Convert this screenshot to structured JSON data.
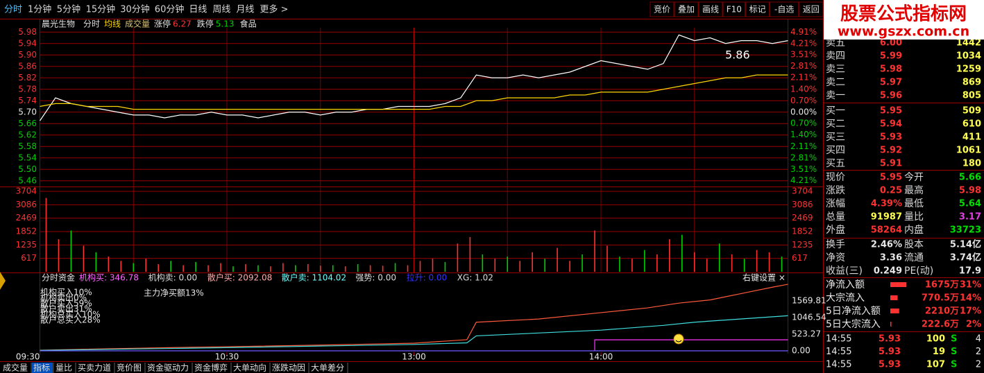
{
  "toolbar": {
    "tabs": [
      "分时",
      "1分钟",
      "5分钟",
      "15分钟",
      "30分钟",
      "60分钟",
      "日线",
      "周线",
      "月线",
      "更多 >"
    ],
    "buttons": [
      "竞价",
      "叠加",
      "画线",
      "F10",
      "标记",
      "-自选",
      "返回"
    ]
  },
  "logo": {
    "title": "股票公式指标网",
    "url": "www.gszx.com.cn"
  },
  "header": {
    "name": "晨光生物",
    "items": [
      "分时",
      "均线",
      "成交量"
    ],
    "limit_up_label": "涨停",
    "limit_up": "6.27",
    "limit_down_label": "跌停",
    "limit_down": "5.13",
    "sector": "食品"
  },
  "chart_data": [
    {
      "type": "line",
      "annotation": "5.86",
      "x": [
        0,
        5,
        10,
        15,
        20,
        25,
        30,
        35,
        40,
        45,
        50,
        55,
        60,
        65,
        70,
        75,
        80,
        85,
        90,
        95,
        100,
        105,
        110,
        115,
        120,
        125,
        130,
        135,
        140,
        145,
        150,
        155,
        160,
        165,
        170,
        175,
        180,
        185,
        190,
        195,
        200,
        205,
        210,
        215,
        220,
        225,
        230,
        235,
        240
      ],
      "xlim": [
        0,
        240
      ],
      "series": [
        {
          "color": "#ffffff",
          "values": [
            5.67,
            5.75,
            5.73,
            5.72,
            5.71,
            5.7,
            5.69,
            5.69,
            5.68,
            5.69,
            5.69,
            5.7,
            5.69,
            5.69,
            5.68,
            5.69,
            5.7,
            5.7,
            5.69,
            5.7,
            5.7,
            5.71,
            5.71,
            5.72,
            5.72,
            5.72,
            5.73,
            5.75,
            5.83,
            5.82,
            5.82,
            5.83,
            5.82,
            5.83,
            5.84,
            5.86,
            5.88,
            5.87,
            5.86,
            5.85,
            5.87,
            5.97,
            5.95,
            5.96,
            5.94,
            5.95,
            5.95,
            5.94,
            5.95
          ]
        },
        {
          "color": "#ffd700",
          "values": [
            5.72,
            5.73,
            5.73,
            5.72,
            5.72,
            5.72,
            5.71,
            5.71,
            5.71,
            5.71,
            5.71,
            5.71,
            5.71,
            5.71,
            5.71,
            5.71,
            5.71,
            5.71,
            5.71,
            5.71,
            5.71,
            5.71,
            5.71,
            5.71,
            5.71,
            5.71,
            5.72,
            5.72,
            5.74,
            5.74,
            5.75,
            5.75,
            5.75,
            5.75,
            5.76,
            5.76,
            5.77,
            5.77,
            5.77,
            5.77,
            5.78,
            5.79,
            5.8,
            5.81,
            5.82,
            5.82,
            5.83,
            5.83,
            5.83
          ]
        }
      ],
      "ylim": [
        5.44,
        6.0
      ],
      "yticks": [
        {
          "value": 5.98,
          "label": "5.98"
        },
        {
          "value": 5.94,
          "label": "5.94"
        },
        {
          "value": 5.9,
          "label": "5.90"
        },
        {
          "value": 5.86,
          "label": "5.86"
        },
        {
          "value": 5.82,
          "label": "5.82"
        },
        {
          "value": 5.78,
          "label": "5.78"
        },
        {
          "value": 5.74,
          "label": "5.74"
        },
        {
          "value": 5.7,
          "label": "5.70"
        },
        {
          "value": 5.66,
          "label": "5.66"
        },
        {
          "value": 5.62,
          "label": "5.62"
        },
        {
          "value": 5.58,
          "label": "5.58"
        },
        {
          "value": 5.54,
          "label": "5.54"
        },
        {
          "value": 5.5,
          "label": "5.50"
        },
        {
          "value": 5.46,
          "label": "5.46"
        }
      ],
      "y2lim": [
        -4.561,
        5.263
      ],
      "y2ticks": [
        {
          "value": 4.91,
          "label": "4.91%"
        },
        {
          "value": 4.21,
          "label": "4.21%"
        },
        {
          "value": 3.51,
          "label": "3.51%"
        },
        {
          "value": 2.81,
          "label": "2.81%"
        },
        {
          "value": 2.11,
          "label": "2.11%"
        },
        {
          "value": 1.4,
          "label": "1.40%"
        },
        {
          "value": 0.7,
          "label": "0.70%"
        },
        {
          "value": 0,
          "label": "0.00%"
        },
        {
          "value": -0.7,
          "label": "0.70%"
        },
        {
          "value": -1.4,
          "label": "1.40%"
        },
        {
          "value": -2.11,
          "label": "2.11%"
        },
        {
          "value": -2.81,
          "label": "2.81%"
        },
        {
          "value": -3.51,
          "label": "3.51%"
        },
        {
          "value": -4.21,
          "label": "4.21%"
        }
      ],
      "grid": true,
      "grid_color": "#9a0000"
    },
    {
      "type": "bar",
      "x": [
        2,
        6,
        10,
        14,
        18,
        22,
        26,
        30,
        34,
        38,
        42,
        46,
        50,
        54,
        58,
        62,
        66,
        70,
        74,
        78,
        82,
        86,
        90,
        94,
        98,
        102,
        106,
        110,
        114,
        118,
        122,
        126,
        130,
        134,
        138,
        142,
        146,
        150,
        154,
        158,
        162,
        166,
        170,
        174,
        178,
        182,
        186,
        190,
        194,
        198,
        202,
        206,
        210,
        214,
        218,
        222,
        226,
        230,
        234,
        238
      ],
      "xlim": [
        0,
        240
      ],
      "values": [
        3400,
        1500,
        1900,
        1200,
        900,
        700,
        500,
        400,
        600,
        350,
        500,
        300,
        450,
        300,
        400,
        250,
        350,
        300,
        250,
        400,
        300,
        350,
        280,
        300,
        250,
        350,
        300,
        280,
        400,
        300,
        500,
        600,
        450,
        1300,
        1600,
        800,
        600,
        700,
        500,
        900,
        600,
        1100,
        500,
        800,
        1900,
        1200,
        700,
        600,
        1000,
        800,
        1500,
        1700,
        900,
        600,
        1300,
        800,
        600,
        1000,
        900,
        700
      ],
      "bar_colors": [
        "#ff3232",
        "#ff3232",
        "#00d000",
        "#ff3232",
        "#00d000",
        "#ff3232",
        "#ff3232",
        "#00d000",
        "#ff3232",
        "#ff3232",
        "#00d000",
        "#ff3232",
        "#00d000",
        "#ff3232",
        "#ff3232",
        "#00d000",
        "#ff3232",
        "#00d000",
        "#ff3232",
        "#ff3232",
        "#00d000",
        "#ff3232",
        "#ff3232",
        "#00d000",
        "#ff3232",
        "#00d000",
        "#ff3232",
        "#ff3232",
        "#00d000",
        "#ff3232",
        "#ff3232",
        "#ff3232",
        "#00d000",
        "#ff3232",
        "#ff3232",
        "#00d000",
        "#ff3232",
        "#00d000",
        "#ff3232",
        "#ff3232",
        "#00d000",
        "#ff3232",
        "#ff3232",
        "#00d000",
        "#ff3232",
        "#ff3232",
        "#00d000",
        "#ff3232",
        "#00d000",
        "#ff3232",
        "#ff3232",
        "#00d000",
        "#ff3232",
        "#ff3232",
        "#00d000",
        "#ff3232",
        "#00d000",
        "#ff3232",
        "#ff3232",
        "#00d000"
      ],
      "ylim": [
        0,
        3704
      ],
      "yticks": [
        617,
        1235,
        1852,
        2469,
        3086,
        3704
      ],
      "grid": true,
      "grid_color": "#9a0000"
    },
    {
      "type": "line",
      "title": "分时资金",
      "stats": [
        {
          "text": "机构买: 346.78",
          "color": "#ff66ff"
        },
        {
          "text": "机构卖: 0.00",
          "color": "#dddddd"
        },
        {
          "text": "散户买: 2092.08",
          "color": "#ffaaaa"
        },
        {
          "text": "散户卖: 1104.02",
          "color": "#66ffff"
        },
        {
          "text": "强势: 0.00",
          "color": "#dddddd"
        },
        {
          "text": "拉升: 0.00",
          "color": "#3333ff"
        },
        {
          "text": "XG: 1.02",
          "color": "#dddddd"
        }
      ],
      "settings_label": "右键设置 ×",
      "overlay": [
        "机构买入10%",
        "机构卖出0%",
        "散户买入59%",
        "散户卖出31%",
        "机构总买入10%",
        "散户总买入28%"
      ],
      "net_label": "主力净买额13%",
      "xlim": [
        0,
        240
      ],
      "xticks": [
        {
          "value": 0,
          "label": "09:30"
        },
        {
          "value": 60,
          "label": "10:30"
        },
        {
          "value": 120,
          "label": "13:00"
        },
        {
          "value": 180,
          "label": "14:00"
        }
      ],
      "series": [
        {
          "color": "#ff5a3c",
          "x": [
            0,
            30,
            60,
            90,
            120,
            137,
            140,
            160,
            180,
            195,
            205,
            215,
            220,
            225,
            235,
            240
          ],
          "values": [
            20,
            80,
            130,
            180,
            240,
            350,
            900,
            1000,
            1200,
            1350,
            1500,
            1600,
            1700,
            1800,
            2000,
            2092.08
          ]
        },
        {
          "color": "#40e0e0",
          "x": [
            0,
            60,
            120,
            137,
            140,
            180,
            200,
            210,
            240
          ],
          "values": [
            15,
            100,
            200,
            250,
            470,
            650,
            800,
            900,
            1104.02
          ]
        },
        {
          "color": "#ff33ff",
          "x": [
            178,
            178,
            240
          ],
          "values": [
            0,
            346.78,
            346.78
          ]
        },
        {
          "color": "#6a5cff",
          "x": [
            0,
            240
          ],
          "values": [
            0,
            0
          ]
        }
      ],
      "ylim": [
        0,
        2180
      ],
      "yticks": [
        {
          "value": 0,
          "label": "0.00"
        },
        523.27,
        1046.54,
        1569.81
      ]
    }
  ],
  "quote": {
    "asks": [
      {
        "label": "卖五",
        "price": "6.00",
        "volume": "1442",
        "color": "#ff3232"
      },
      {
        "label": "卖四",
        "price": "5.99",
        "volume": "1034",
        "color": "#ff3232"
      },
      {
        "label": "卖三",
        "price": "5.98",
        "volume": "1259",
        "color": "#ff3232"
      },
      {
        "label": "卖二",
        "price": "5.97",
        "volume": "869",
        "color": "#ff3232"
      },
      {
        "label": "卖一",
        "price": "5.96",
        "volume": "805",
        "color": "#ff3232"
      }
    ],
    "bids": [
      {
        "label": "买一",
        "price": "5.95",
        "volume": "509",
        "color": "#ff3232"
      },
      {
        "label": "买二",
        "price": "5.94",
        "volume": "610",
        "color": "#ff3232"
      },
      {
        "label": "买三",
        "price": "5.93",
        "volume": "411",
        "color": "#ff3232"
      },
      {
        "label": "买四",
        "price": "5.92",
        "volume": "1061",
        "color": "#ff3232"
      },
      {
        "label": "买五",
        "price": "5.91",
        "volume": "180",
        "color": "#ff3232"
      }
    ],
    "stats": [
      {
        "l1": "现价",
        "v1": "5.95",
        "c1": "#ff3232",
        "l2": "今开",
        "v2": "5.66",
        "c2": "#00e000"
      },
      {
        "l1": "涨跌",
        "v1": "0.25",
        "c1": "#ff3232",
        "l2": "最高",
        "v2": "5.98",
        "c2": "#ff3232"
      },
      {
        "l1": "涨幅",
        "v1": "4.39%",
        "c1": "#ff3232",
        "l2": "最低",
        "v2": "5.64",
        "c2": "#00e000"
      },
      {
        "l1": "总量",
        "v1": "91987",
        "c1": "#ffff50",
        "l2": "量比",
        "v2": "3.17",
        "c2": "#e040e0"
      },
      {
        "l1": "外盘",
        "v1": "58264",
        "c1": "#ff3232",
        "l2": "内盘",
        "v2": "33723",
        "c2": "#00e000"
      }
    ],
    "info": [
      {
        "l1": "换手",
        "v1": "2.46%",
        "c1": "#e8e8e8",
        "l2": "股本",
        "v2": "5.14亿",
        "c2": "#e8e8e8"
      },
      {
        "l1": "净资",
        "v1": "3.36",
        "c1": "#e8e8e8",
        "l2": "流通",
        "v2": "3.74亿",
        "c2": "#e8e8e8"
      },
      {
        "l1": "收益(三)",
        "v1": "0.249",
        "c1": "#e8e8e8",
        "l2": "PE(动)",
        "v2": "17.9",
        "c2": "#e8e8e8"
      }
    ],
    "flows": [
      {
        "label": "净流入额",
        "value": "1675万",
        "pct": "31%"
      },
      {
        "label": "大宗流入",
        "value": "770.5万",
        "pct": "14%"
      },
      {
        "label": "5日净流入额",
        "value": "2210万",
        "pct": "17%"
      },
      {
        "label": "5日大宗流入",
        "value": "222.6万",
        "pct": "2%"
      }
    ],
    "trades": [
      {
        "time": "14:55",
        "price": "5.93",
        "volume": "100",
        "side": "S",
        "count": "4"
      },
      {
        "time": "14:55",
        "price": "5.93",
        "volume": "19",
        "side": "S",
        "count": "2"
      },
      {
        "time": "14:55",
        "price": "5.93",
        "volume": "107",
        "side": "S",
        "count": "2"
      }
    ]
  },
  "tabs": [
    "成交量",
    "指标",
    "量比",
    "买卖力道",
    "竞价图",
    "资金驱动力",
    "资金博弈",
    "大单动向",
    "涨跌动因",
    "大单差分"
  ]
}
